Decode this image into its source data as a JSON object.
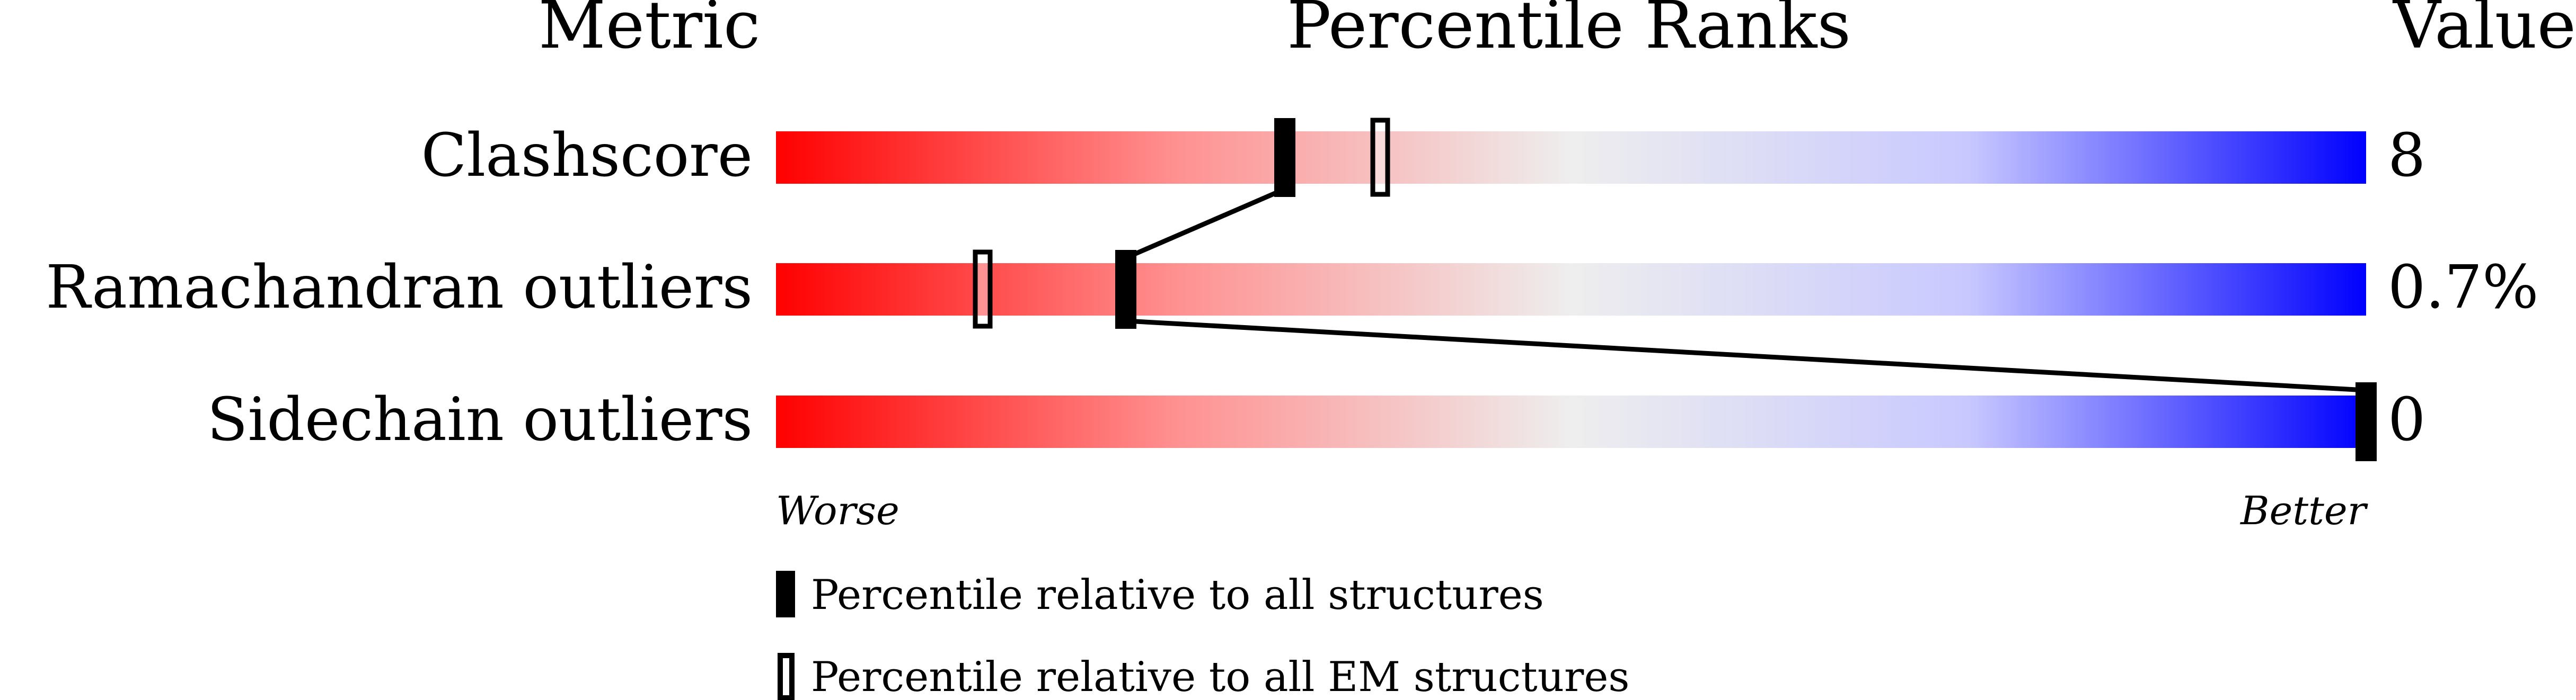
{
  "chart_data": {
    "type": "bar",
    "headers": {
      "metric": "Metric",
      "ranks": "Percentile Ranks",
      "value": "Value"
    },
    "xlim": [
      0,
      100
    ],
    "axis_labels": {
      "worse": "Worse",
      "better": "Better"
    },
    "gradient_colors": [
      "#ff0000",
      "#eeeeee",
      "#0000ff"
    ],
    "rows": [
      {
        "metric": "Clashscore",
        "value": "8",
        "percentile_all": 32,
        "percentile_em": 38
      },
      {
        "metric": "Ramachandran outliers",
        "value": "0.7%",
        "percentile_all": 22,
        "percentile_em": 13
      },
      {
        "metric": "Sidechain outliers",
        "value": "0",
        "percentile_all": 100,
        "percentile_em": null
      }
    ],
    "legend": [
      {
        "marker": "filled",
        "label": "Percentile relative to all structures"
      },
      {
        "marker": "hollow",
        "label": "Percentile relative to all EM structures"
      }
    ]
  }
}
